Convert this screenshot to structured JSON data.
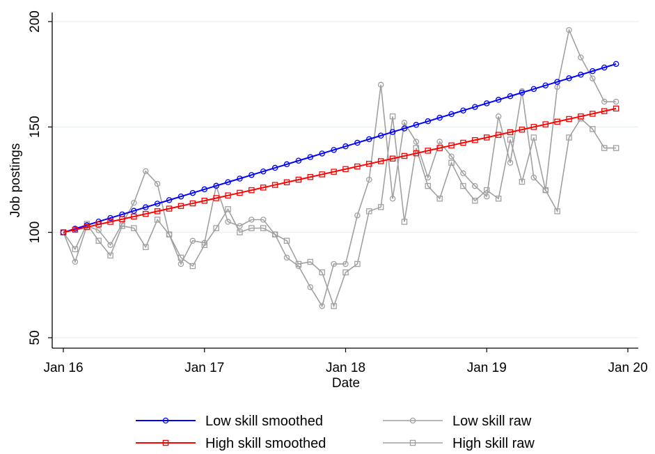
{
  "chart_data": {
    "type": "line",
    "title": "",
    "xlabel": "Date",
    "ylabel": "Job postings",
    "ylim": [
      50,
      200
    ],
    "yticks": [
      50,
      100,
      150,
      200
    ],
    "xlim": [
      "Jan 16",
      "Jan 20"
    ],
    "xticks": [
      "Jan 16",
      "Jan 17",
      "Jan 18",
      "Jan 19",
      "Jan 20"
    ],
    "grid": "horizontal",
    "legend_position": "bottom",
    "x_dates": [
      "Jan 16",
      "Feb 16",
      "Mar 16",
      "Apr 16",
      "May 16",
      "Jun 16",
      "Jul 16",
      "Aug 16",
      "Sep 16",
      "Oct 16",
      "Nov 16",
      "Dec 16",
      "Jan 17",
      "Feb 17",
      "Mar 17",
      "Apr 17",
      "May 17",
      "Jun 17",
      "Jul 17",
      "Aug 17",
      "Sep 17",
      "Oct 17",
      "Nov 17",
      "Dec 17",
      "Jan 18",
      "Feb 18",
      "Mar 18",
      "Apr 18",
      "May 18",
      "Jun 18",
      "Jul 18",
      "Aug 18",
      "Sep 18",
      "Oct 18",
      "Nov 18",
      "Dec 18",
      "Jan 19",
      "Feb 19",
      "Mar 19",
      "Apr 19",
      "May 19",
      "Jun 19",
      "Jul 19",
      "Aug 19",
      "Sep 19",
      "Oct 19",
      "Nov 19",
      "Dec 19"
    ],
    "series": [
      {
        "name": "Low skill smoothed",
        "color": "#0000ff",
        "marker": "circle",
        "values": [
          100,
          101.7,
          103.4,
          105.1,
          106.8,
          108.5,
          110.2,
          111.9,
          113.6,
          115.3,
          117.0,
          118.7,
          120.4,
          122.1,
          123.8,
          125.5,
          127.2,
          128.9,
          130.6,
          132.3,
          134.0,
          135.7,
          137.4,
          139.1,
          140.8,
          142.5,
          144.2,
          145.9,
          147.6,
          149.3,
          151.0,
          152.7,
          154.4,
          156.1,
          157.8,
          159.5,
          161.2,
          162.9,
          164.6,
          166.3,
          168.0,
          169.7,
          171.4,
          173.1,
          174.8,
          176.5,
          178.2,
          179.9
        ]
      },
      {
        "name": "High skill smoothed",
        "color": "#ff0000",
        "marker": "square",
        "values": [
          100,
          101.25,
          102.5,
          103.75,
          105.0,
          106.25,
          107.5,
          108.75,
          110.0,
          111.25,
          112.5,
          113.75,
          115.0,
          116.25,
          117.5,
          118.75,
          120.0,
          121.25,
          122.5,
          123.75,
          125.0,
          126.25,
          127.5,
          128.75,
          130.0,
          131.25,
          132.5,
          133.75,
          135.0,
          136.25,
          137.5,
          138.75,
          140.0,
          141.25,
          142.5,
          143.75,
          145.0,
          146.25,
          147.5,
          148.75,
          150.0,
          151.25,
          152.5,
          153.75,
          155.0,
          156.25,
          157.5,
          158.75
        ]
      },
      {
        "name": "Low skill raw",
        "color": "#a0a0a0",
        "marker": "circle",
        "values": [
          100,
          86,
          103,
          101,
          94,
          104,
          114,
          129,
          123,
          99,
          85,
          96,
          95,
          122,
          105,
          103,
          106,
          106,
          99,
          88,
          84,
          74,
          65,
          85,
          85,
          108,
          125,
          170,
          116,
          152,
          143,
          126,
          143,
          136,
          128,
          122,
          117,
          155,
          133,
          167,
          126,
          120,
          169,
          196,
          183,
          173,
          162,
          162
        ]
      },
      {
        "name": "High skill raw",
        "color": "#a0a0a0",
        "marker": "square",
        "values": [
          100,
          92,
          104,
          96,
          89,
          103,
          102,
          93,
          106,
          99,
          88,
          84,
          94,
          102,
          111,
          100,
          102,
          102,
          99,
          96,
          85,
          86,
          81,
          65,
          81,
          85,
          110,
          112,
          155,
          105,
          140,
          122,
          116,
          133,
          122,
          115,
          120,
          116,
          144,
          124,
          145,
          120,
          110,
          145,
          154,
          149,
          140,
          140
        ]
      }
    ]
  }
}
